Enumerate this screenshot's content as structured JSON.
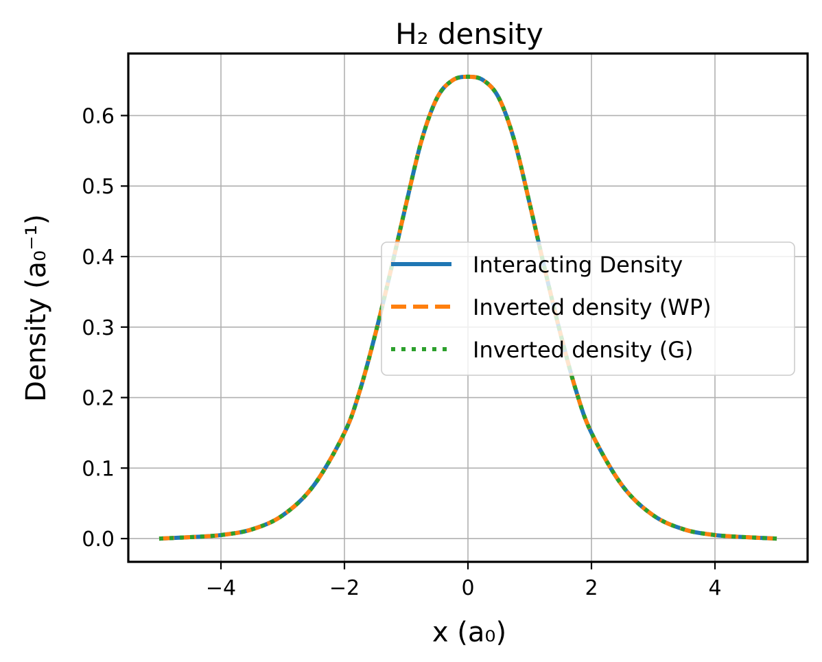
{
  "chart_data": {
    "type": "line",
    "title": "H₂ density",
    "xlabel": "x (a₀)",
    "ylabel": "Density (a₀⁻¹)",
    "xlim": [
      -5.5,
      5.5
    ],
    "ylim": [
      -0.033,
      0.688
    ],
    "xticks": [
      -4,
      -2,
      0,
      2,
      4
    ],
    "xtick_labels": [
      "−4",
      "−2",
      "0",
      "2",
      "4"
    ],
    "yticks": [
      0.0,
      0.1,
      0.2,
      0.3,
      0.4,
      0.5,
      0.6
    ],
    "ytick_labels": [
      "0.0",
      "0.1",
      "0.2",
      "0.3",
      "0.4",
      "0.5",
      "0.6"
    ],
    "grid": true,
    "legend_position": "center-right",
    "x": [
      -5.0,
      -4.5,
      -4.0,
      -3.5,
      -3.0,
      -2.5,
      -2.0,
      -1.75,
      -1.5,
      -1.25,
      -1.0,
      -0.75,
      -0.5,
      -0.25,
      0.0,
      0.25,
      0.5,
      0.75,
      1.0,
      1.25,
      1.5,
      1.75,
      2.0,
      2.5,
      3.0,
      3.5,
      4.0,
      4.5,
      5.0
    ],
    "series": [
      {
        "name": "Interacting Density",
        "color": "#1f77b4",
        "style": "solid",
        "values": [
          0.0,
          0.002,
          0.005,
          0.013,
          0.033,
          0.075,
          0.15,
          0.21,
          0.29,
          0.38,
          0.475,
          0.565,
          0.625,
          0.65,
          0.655,
          0.65,
          0.625,
          0.565,
          0.475,
          0.38,
          0.29,
          0.21,
          0.15,
          0.075,
          0.033,
          0.013,
          0.005,
          0.002,
          0.0
        ]
      },
      {
        "name": "Inverted density (WP)",
        "color": "#ff7f0e",
        "style": "dashed",
        "values": [
          0.0,
          0.002,
          0.005,
          0.013,
          0.033,
          0.075,
          0.15,
          0.21,
          0.29,
          0.38,
          0.475,
          0.565,
          0.625,
          0.65,
          0.655,
          0.65,
          0.625,
          0.565,
          0.475,
          0.38,
          0.29,
          0.21,
          0.15,
          0.075,
          0.033,
          0.013,
          0.005,
          0.002,
          0.0
        ]
      },
      {
        "name": "Inverted density (G)",
        "color": "#2ca02c",
        "style": "dotted",
        "values": [
          0.0,
          0.002,
          0.005,
          0.013,
          0.033,
          0.075,
          0.15,
          0.21,
          0.29,
          0.38,
          0.475,
          0.565,
          0.625,
          0.65,
          0.655,
          0.65,
          0.625,
          0.565,
          0.475,
          0.38,
          0.29,
          0.21,
          0.15,
          0.075,
          0.033,
          0.013,
          0.005,
          0.002,
          0.0
        ]
      }
    ]
  }
}
